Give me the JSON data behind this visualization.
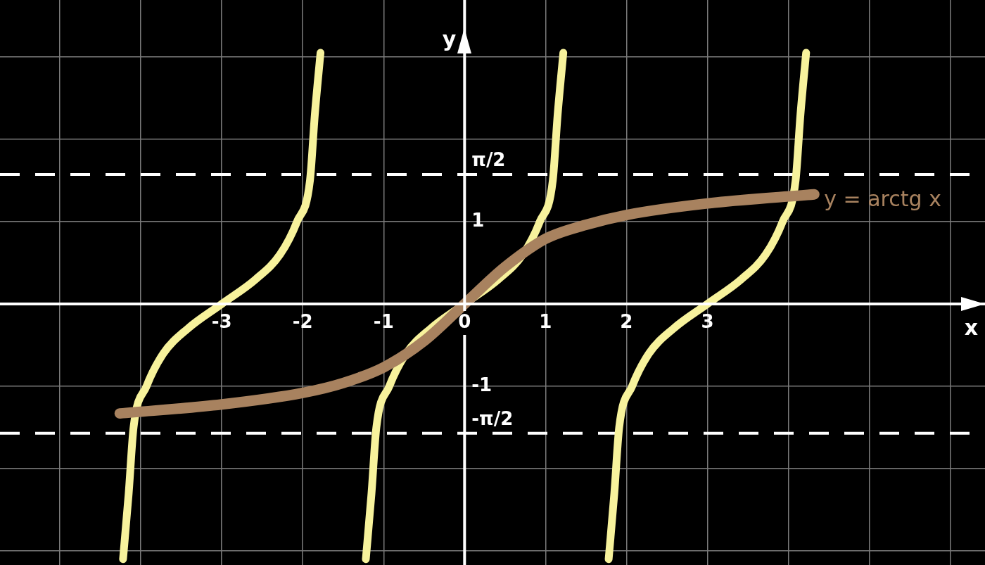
{
  "chart_data": {
    "type": "line",
    "xlabel": "x",
    "ylabel": "y",
    "xlim": [
      -5.74,
      6.43
    ],
    "ylim": [
      -3.17,
      3.69
    ],
    "xticks": [
      {
        "value": -5,
        "label": null
      },
      {
        "value": -4,
        "label": null
      },
      -3,
      -2,
      -1,
      0,
      1,
      2,
      3,
      {
        "value": 4,
        "label": null
      },
      {
        "value": 5,
        "label": null
      },
      {
        "value": 6,
        "label": null
      }
    ],
    "yticks": [
      {
        "value": -3,
        "label": null
      },
      {
        "value": -2,
        "label": null
      },
      -1,
      1,
      {
        "value": 2,
        "label": null
      },
      {
        "value": 3,
        "label": null
      }
    ],
    "grid": true,
    "legend": false,
    "marker": "none",
    "line_style": "solid",
    "ref_lines": [
      {
        "axis": "y",
        "value": 1.5708,
        "label": "π/2",
        "color": "#ffffff",
        "line_style": "dashed"
      },
      {
        "axis": "y",
        "value": -1.5708,
        "label": "-π/2",
        "color": "#ffffff",
        "line_style": "dashed"
      }
    ],
    "series": [
      {
        "color": "#f7f29c",
        "x": [
          -4.22,
          -4.15,
          -4.09,
          -3.93,
          -3.72,
          -3.42,
          -3,
          -2.58,
          -2.28,
          -2.07,
          -1.91,
          -1.85,
          -1.78
        ],
        "values": [
          -3.1,
          -2.3,
          -1.5,
          -1.0,
          -0.6,
          -0.3,
          0,
          0.3,
          0.6,
          1.0,
          1.5,
          2.3,
          3.05
        ]
      },
      {
        "color": "#f7f29c",
        "x": [
          -1.22,
          -1.15,
          -1.09,
          -0.93,
          -0.72,
          -0.42,
          0,
          0.42,
          0.72,
          0.93,
          1.09,
          1.15,
          1.22
        ],
        "values": [
          -3.1,
          -2.3,
          -1.5,
          -1.0,
          -0.6,
          -0.3,
          0,
          0.3,
          0.6,
          1.0,
          1.5,
          2.3,
          3.05
        ]
      },
      {
        "color": "#f7f29c",
        "x": [
          1.78,
          1.85,
          1.91,
          2.07,
          2.28,
          2.58,
          3,
          3.42,
          3.72,
          3.93,
          4.09,
          4.15,
          4.22
        ],
        "values": [
          -3.1,
          -2.3,
          -1.5,
          -1.0,
          -0.6,
          -0.3,
          0,
          0.3,
          0.6,
          1.0,
          1.5,
          2.3,
          3.05
        ]
      },
      {
        "name": "y = arctg x",
        "color": "#a8825f",
        "x": [
          -4.26,
          -3,
          -2,
          -1.5,
          -1,
          -0.5,
          0,
          0.5,
          1,
          1.5,
          2,
          3,
          4.32
        ],
        "values": [
          -1.33,
          -1.22,
          -1.08,
          -0.96,
          -0.77,
          -0.45,
          0,
          0.45,
          0.79,
          0.96,
          1.08,
          1.22,
          1.33
        ]
      }
    ]
  }
}
